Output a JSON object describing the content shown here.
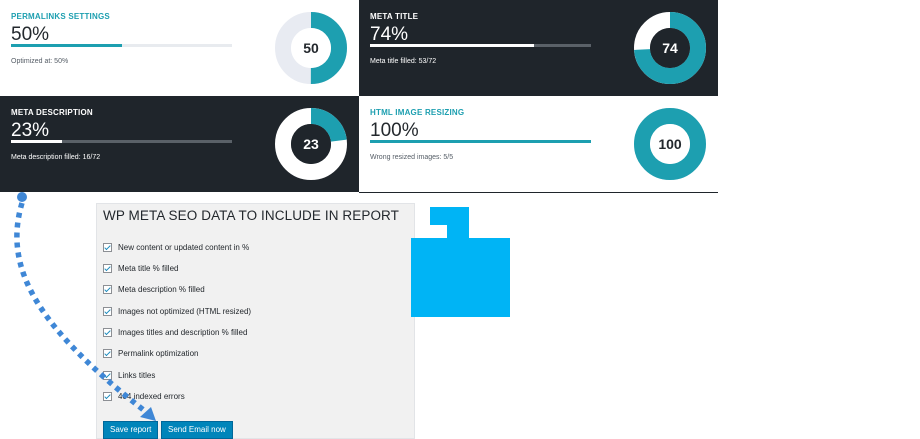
{
  "cards": {
    "permalinks": {
      "title": "PERMALINKS SETTINGS",
      "percent_text": "50%",
      "value": 50,
      "note": "Optimized at: 50%",
      "donut_label": "50"
    },
    "meta_title": {
      "title": "META TITLE",
      "percent_text": "74%",
      "value": 74,
      "note": "Meta title filled: 53/72",
      "donut_label": "74"
    },
    "meta_description": {
      "title": "META DESCRIPTION",
      "percent_text": "23%",
      "value": 23,
      "note": "Meta description filled: 16/72",
      "donut_label": "23"
    },
    "image_resizing": {
      "title": "HTML IMAGE RESIZING",
      "percent_text": "100%",
      "value": 100,
      "note": "Wrong resized images: 5/5",
      "donut_label": "100"
    }
  },
  "report_panel": {
    "title": "WP META SEO DATA TO INCLUDE IN REPORT",
    "options": [
      {
        "label": "New content or updated content in %",
        "checked": true
      },
      {
        "label": "Meta title % filled",
        "checked": true
      },
      {
        "label": "Meta description % filled",
        "checked": true
      },
      {
        "label": "Images not optimized (HTML resized)",
        "checked": true
      },
      {
        "label": "Images titles and description % filled",
        "checked": true
      },
      {
        "label": "Permalink optimization",
        "checked": true
      },
      {
        "label": "Links titles",
        "checked": true
      },
      {
        "label": "404 indexed errors",
        "checked": true
      }
    ],
    "save_label": "Save report",
    "email_label": "Send Email now"
  },
  "colors": {
    "accent": "#1d9fb0",
    "dark_bg": "#1f252b",
    "arrow": "#3f87d6",
    "logo_blue": "#00b4f5",
    "button_blue": "#0085ba"
  }
}
